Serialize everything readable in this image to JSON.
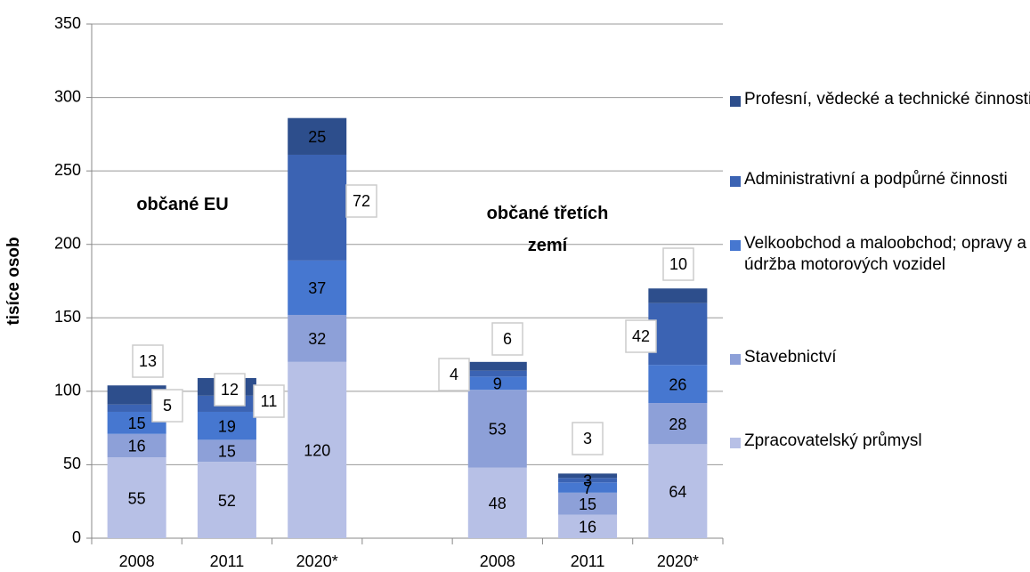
{
  "chart_data": {
    "type": "bar",
    "stacked": true,
    "y_label": "tisíce osob",
    "annotations": [
      "občané EU",
      "občané třetích zemí"
    ],
    "categories": [
      "2008",
      "2011",
      "2020*",
      null,
      "2008",
      "2011",
      "2020*"
    ],
    "series": [
      {
        "name": "Zpracovatelský průmysl",
        "color": "#b7c0e6",
        "values": [
          55,
          52,
          120,
          null,
          48,
          16,
          64
        ]
      },
      {
        "name": "Stavebnictví",
        "color": "#8da0d8",
        "values": [
          16,
          15,
          32,
          null,
          53,
          15,
          28
        ]
      },
      {
        "name": "Velkoobchod a maloobchod; opravy a údržba motorových vozidel",
        "color": "#4677d0",
        "values": [
          15,
          19,
          37,
          null,
          9,
          7,
          26
        ]
      },
      {
        "name": "Administrativní a podpůrné činnosti",
        "color": "#3b63b3",
        "values": [
          5,
          11,
          72,
          null,
          4,
          3,
          42
        ]
      },
      {
        "name": "Profesní, vědecké a technické činnosti",
        "color": "#2d4e8c",
        "values": [
          13,
          12,
          25,
          null,
          6,
          3,
          10
        ]
      }
    ],
    "ylim": [
      0,
      350
    ],
    "yticks": [
      0,
      50,
      100,
      150,
      200,
      250,
      300,
      350
    ],
    "grid": true
  }
}
